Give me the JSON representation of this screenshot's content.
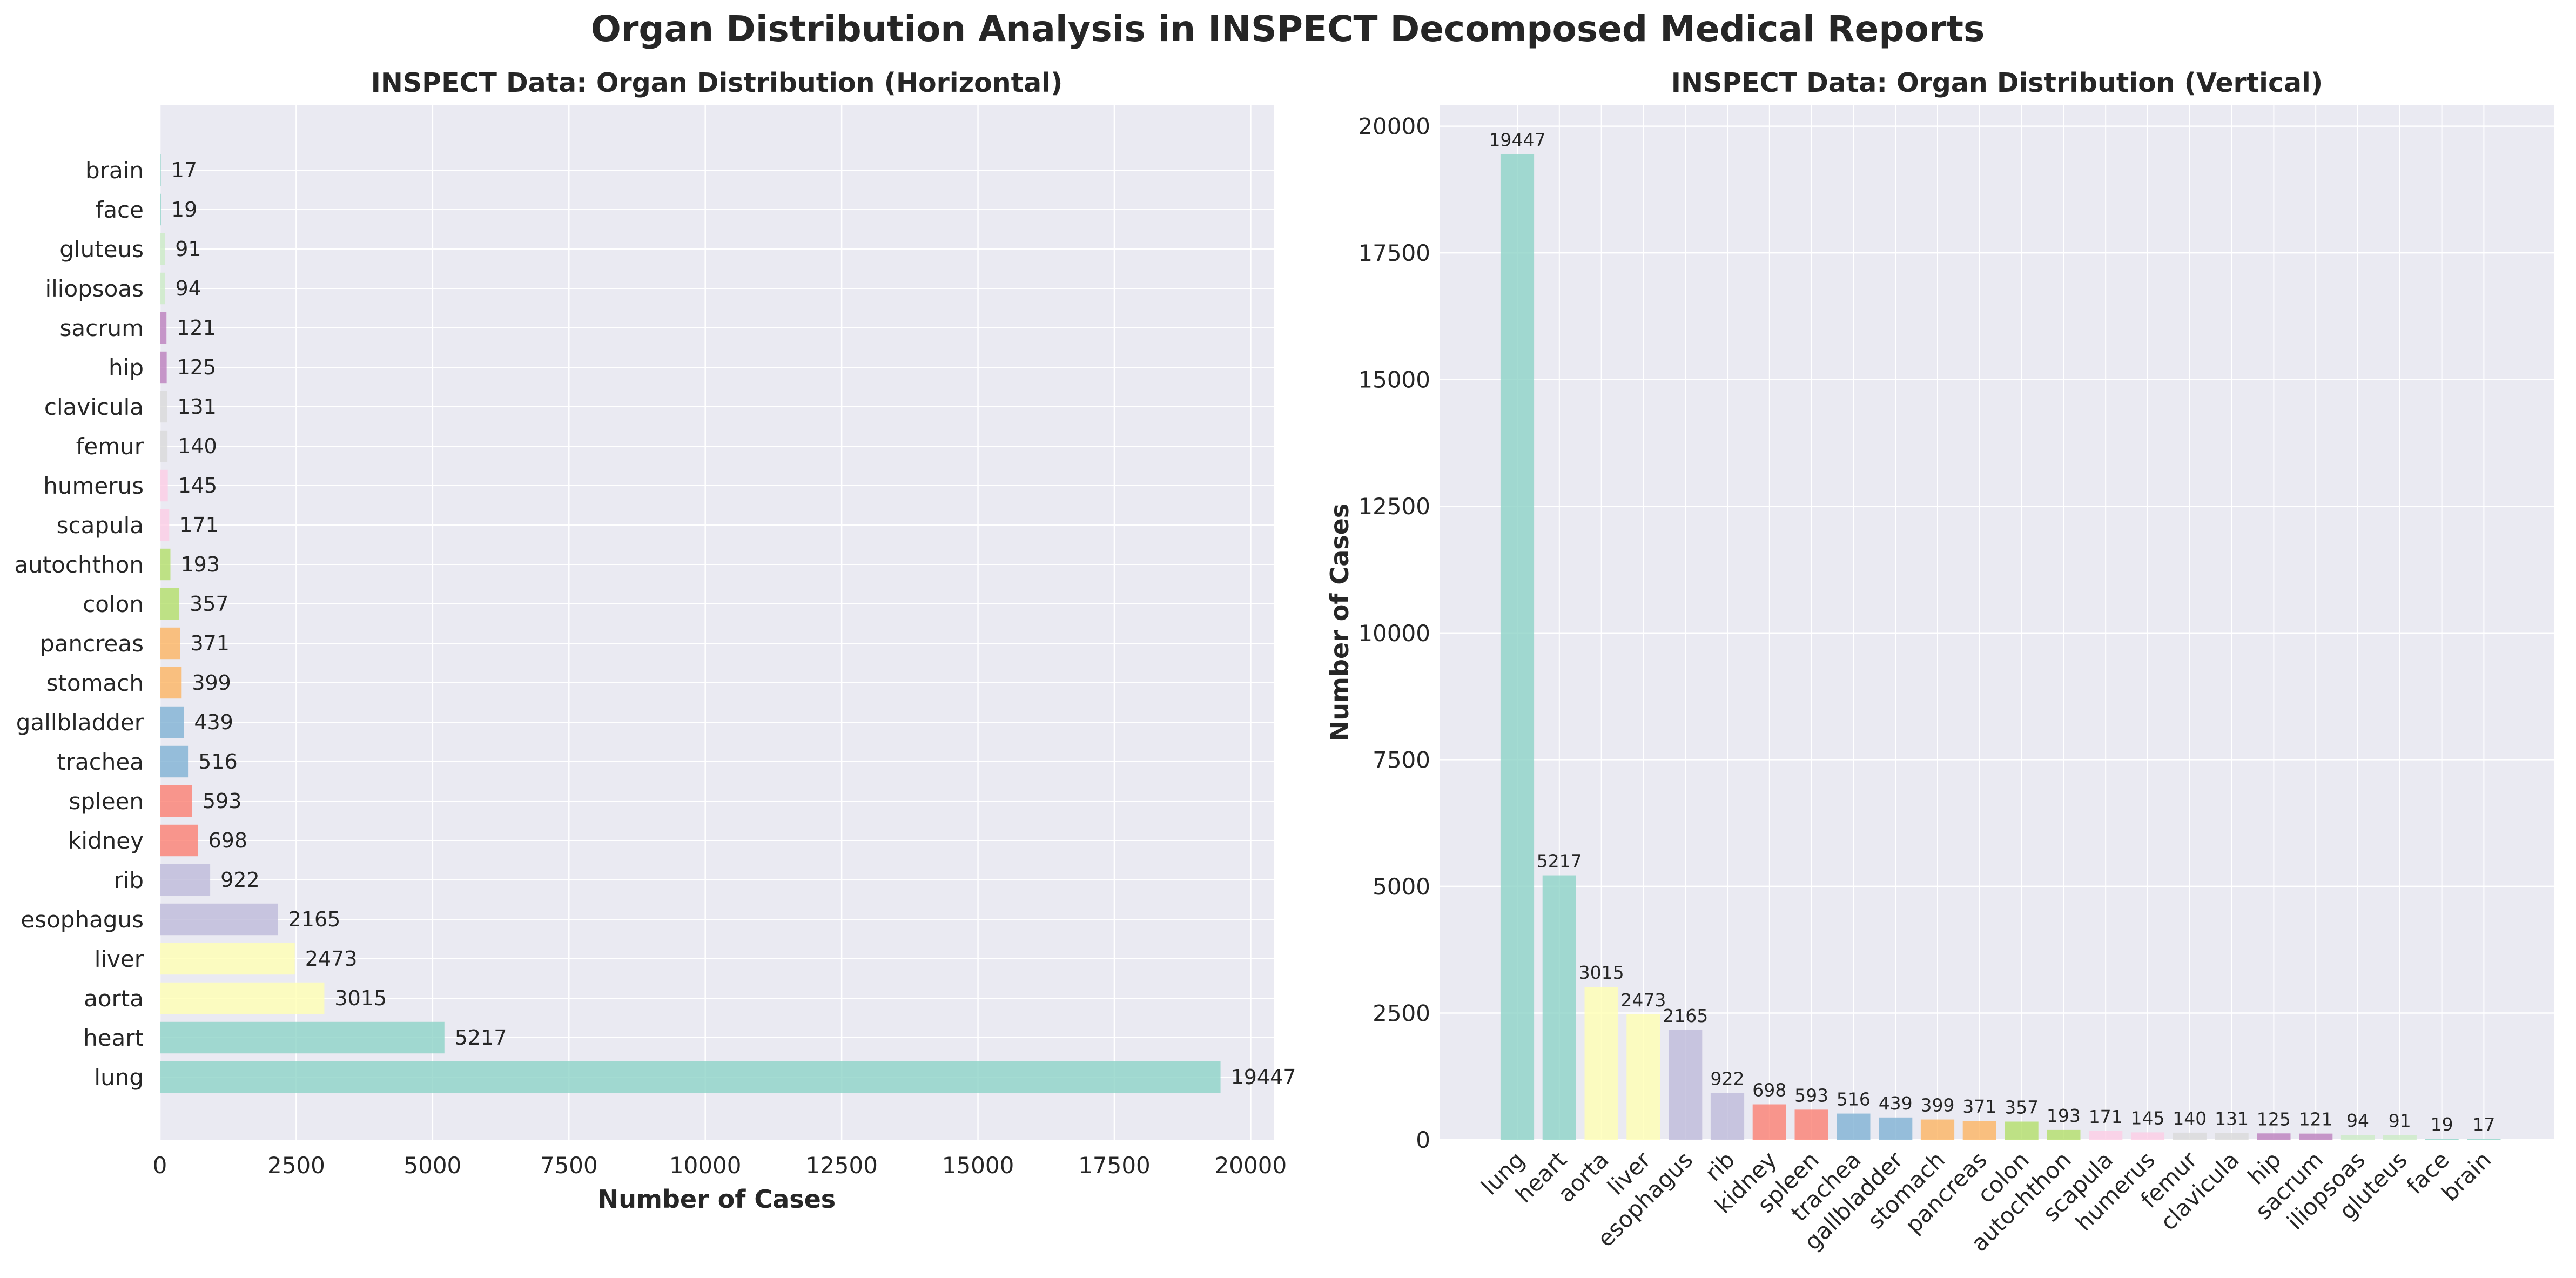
{
  "suptitle": "Organ Distribution Analysis in INSPECT Decomposed Medical Reports",
  "colors": {
    "plot_bg": "#eaeaf2",
    "grid": "#ffffff",
    "text": "#262626",
    "palette": [
      "#8dd3c7",
      "#ffffb3",
      "#bebada",
      "#fb8072",
      "#80b1d3",
      "#fdb462",
      "#b3de69",
      "#fccde5",
      "#d9d9d9",
      "#bc80bd",
      "#ccebc5"
    ]
  },
  "chart_data": [
    {
      "type": "bar",
      "orientation": "horizontal",
      "title": "INSPECT Data: Organ Distribution (Horizontal)",
      "xlabel": "Number of Cases",
      "ylabel": "",
      "xlim": [
        0,
        20422
      ],
      "xticks": [
        0,
        2500,
        5000,
        7500,
        10000,
        12500,
        15000,
        17500,
        20000
      ],
      "grid": true,
      "categories": [
        "lung",
        "heart",
        "aorta",
        "liver",
        "esophagus",
        "rib",
        "kidney",
        "spleen",
        "trachea",
        "gallbladder",
        "stomach",
        "pancreas",
        "colon",
        "autochthon",
        "scapula",
        "humerus",
        "femur",
        "clavicula",
        "hip",
        "sacrum",
        "iliopsoas",
        "gluteus",
        "face",
        "brain"
      ],
      "values": [
        19447,
        5217,
        3015,
        2473,
        2165,
        922,
        698,
        593,
        516,
        439,
        399,
        371,
        357,
        193,
        171,
        145,
        140,
        131,
        125,
        121,
        94,
        91,
        19,
        17
      ]
    },
    {
      "type": "bar",
      "orientation": "vertical",
      "title": "INSPECT Data: Organ Distribution (Vertical)",
      "xlabel": "",
      "ylabel": "Number of Cases",
      "ylim": [
        0,
        20422
      ],
      "yticks": [
        0,
        2500,
        5000,
        7500,
        10000,
        12500,
        15000,
        17500,
        20000
      ],
      "grid": true,
      "categories": [
        "lung",
        "heart",
        "aorta",
        "liver",
        "esophagus",
        "rib",
        "kidney",
        "spleen",
        "trachea",
        "gallbladder",
        "stomach",
        "pancreas",
        "colon",
        "autochthon",
        "scapula",
        "humerus",
        "femur",
        "clavicula",
        "hip",
        "sacrum",
        "iliopsoas",
        "gluteus",
        "face",
        "brain"
      ],
      "values": [
        19447,
        5217,
        3015,
        2473,
        2165,
        922,
        698,
        593,
        516,
        439,
        399,
        371,
        357,
        193,
        171,
        145,
        140,
        131,
        125,
        121,
        94,
        91,
        19,
        17
      ]
    }
  ]
}
